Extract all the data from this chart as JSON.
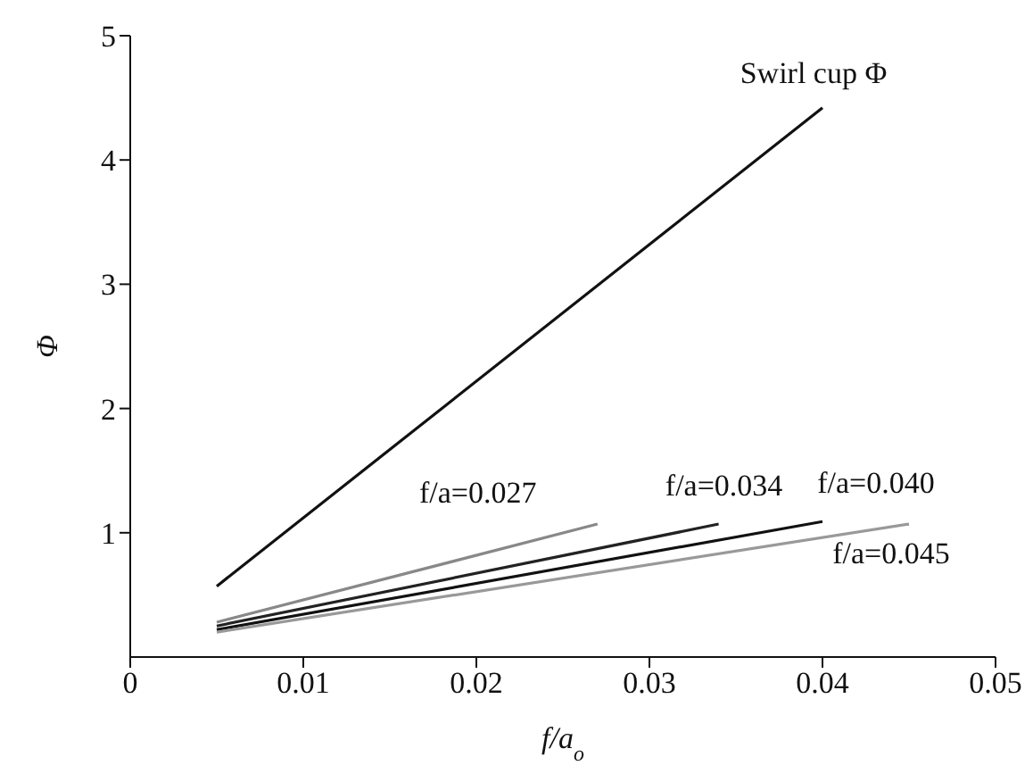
{
  "chart_data": {
    "type": "line",
    "xlabel": "f/a$_{o}$",
    "ylabel": "Φ",
    "xlim": [
      0,
      0.05
    ],
    "ylim": [
      0,
      5
    ],
    "xticks": [
      0,
      0.01,
      0.02,
      0.03,
      0.04,
      0.05
    ],
    "yticks": [
      1,
      2,
      3,
      4,
      5
    ],
    "grid": false,
    "legend": false,
    "marker": "none",
    "line_style": "solid",
    "series": [
      {
        "name": "Swirl cup Φ",
        "color": "#111111",
        "x": [
          0.005,
          0.04
        ],
        "values": [
          0.57,
          4.42
        ]
      },
      {
        "name": "f/a=0.027",
        "color": "#888888",
        "x": [
          0.005,
          0.027
        ],
        "values": [
          0.28,
          1.07
        ]
      },
      {
        "name": "f/a=0.034",
        "color": "#222222",
        "x": [
          0.005,
          0.034
        ],
        "values": [
          0.25,
          1.07
        ]
      },
      {
        "name": "f/a=0.040",
        "color": "#111111",
        "x": [
          0.005,
          0.04
        ],
        "values": [
          0.22,
          1.09
        ]
      },
      {
        "name": "f/a=0.045",
        "color": "#999999",
        "x": [
          0.005,
          0.045
        ],
        "values": [
          0.2,
          1.07
        ]
      }
    ]
  }
}
